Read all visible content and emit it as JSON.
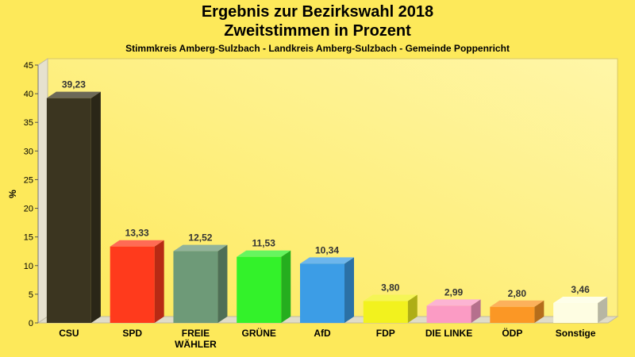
{
  "header": {
    "title_line1": "Ergebnis zur Bezirkswahl 2018",
    "title_line2": "Zweitstimmen in Prozent",
    "subtitle": "Stimmkreis Amberg-Sulzbach - Landkreis Amberg-Sulzbach - Gemeinde Poppenricht"
  },
  "chart_data": {
    "type": "bar",
    "title": "Ergebnis zur Bezirkswahl 2018 Zweitstimmen in Prozent",
    "subtitle": "Stimmkreis Amberg-Sulzbach - Landkreis Amberg-Sulzbach - Gemeinde Poppenricht",
    "ylabel": "%",
    "ylim": [
      0,
      45
    ],
    "yticks": [
      0,
      5,
      10,
      15,
      20,
      25,
      30,
      35,
      40,
      45
    ],
    "grid": false,
    "categories": [
      "CSU",
      "SPD",
      "FREIE WÄHLER",
      "GRÜNE",
      "AfD",
      "FDP",
      "DIE LINKE",
      "ÖDP",
      "Sonstige"
    ],
    "category_lines": [
      [
        "CSU"
      ],
      [
        "SPD"
      ],
      [
        "FREIE",
        "WÄHLER"
      ],
      [
        "GRÜNE"
      ],
      [
        "AfD"
      ],
      [
        "FDP"
      ],
      [
        "DIE LINKE"
      ],
      [
        "ÖDP"
      ],
      [
        "Sonstige"
      ]
    ],
    "values": [
      39.23,
      13.33,
      12.52,
      11.53,
      10.34,
      3.8,
      2.99,
      2.8,
      3.46
    ],
    "value_labels": [
      "39,23",
      "13,33",
      "12,52",
      "11,53",
      "10,34",
      "3,80",
      "2,99",
      "2,80",
      "3,46"
    ],
    "colors": [
      "#3b3520",
      "#ff3a1c",
      "#6e9a78",
      "#33f22a",
      "#3c9de6",
      "#f2f21e",
      "#fb9bc4",
      "#fb9725",
      "#fefde2"
    ]
  }
}
